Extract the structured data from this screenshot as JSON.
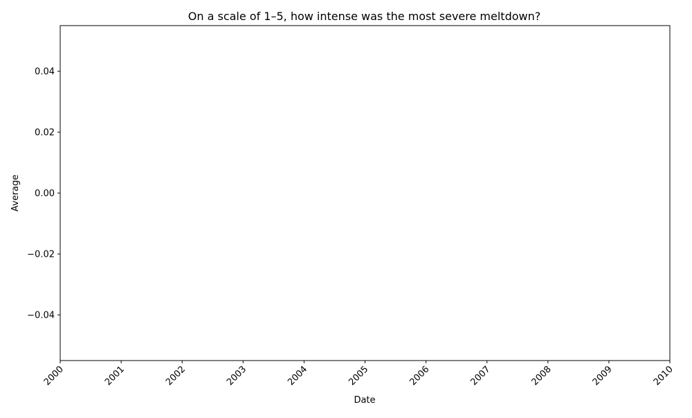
{
  "chart_data": {
    "type": "line",
    "title": "On a scale of 1–5, how intense was the most severe meltdown?",
    "xlabel": "Date",
    "ylabel": "Average",
    "x_ticks": [
      "2000",
      "2001",
      "2002",
      "2003",
      "2004",
      "2005",
      "2006",
      "2007",
      "2008",
      "2009",
      "2010"
    ],
    "y_ticks": [
      "0.04",
      "0.02",
      "0.00",
      "−0.02",
      "−0.04"
    ],
    "y_tick_values": [
      0.04,
      0.02,
      0.0,
      -0.02,
      -0.04
    ],
    "xlim": [
      "2000",
      "2010"
    ],
    "ylim": [
      -0.055,
      0.055
    ],
    "grid": false,
    "series": [
      {
        "values": []
      }
    ]
  }
}
